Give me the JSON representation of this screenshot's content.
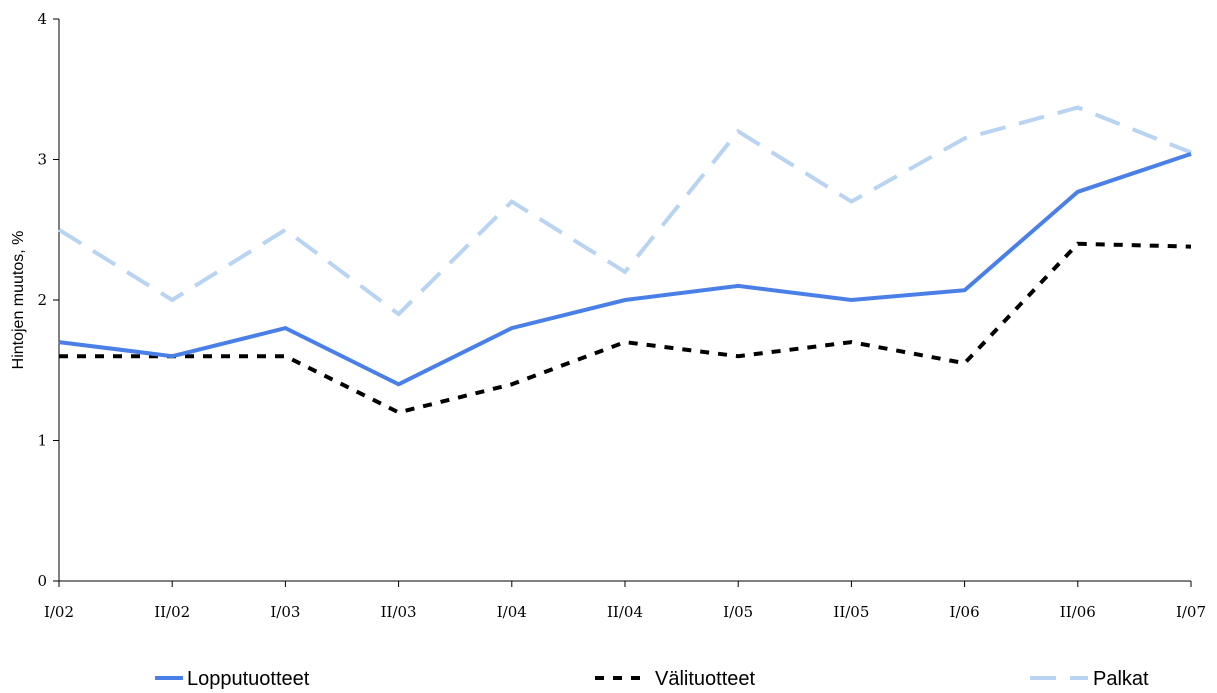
{
  "chart_data": {
    "type": "line",
    "title": "",
    "xlabel": "",
    "ylabel": "Hintojen muutos, %",
    "categories": [
      "I/02",
      "II/02",
      "I/03",
      "II/03",
      "I/04",
      "II/04",
      "I/05",
      "II/05",
      "I/06",
      "II/06",
      "I/07"
    ],
    "ylim": [
      0,
      4
    ],
    "yticks": [
      "0",
      "1",
      "2",
      "3",
      "4"
    ],
    "grid": false,
    "legend_position": "bottom",
    "series": [
      {
        "name": "Lopputuotteet",
        "color": "#4a7fe8",
        "style": "solid",
        "values": [
          1.7,
          1.6,
          1.8,
          1.4,
          1.8,
          2.0,
          2.1,
          2.0,
          2.07,
          2.77,
          3.04
        ]
      },
      {
        "name": "Välituotteet",
        "color": "#000000",
        "style": "dotted",
        "values": [
          1.6,
          1.6,
          1.6,
          1.2,
          1.4,
          1.7,
          1.6,
          1.7,
          1.55,
          2.4,
          2.38
        ]
      },
      {
        "name": "Palkat",
        "color": "#b8d4f2",
        "style": "dashed",
        "values": [
          2.5,
          2.0,
          2.5,
          1.9,
          2.7,
          2.2,
          3.2,
          2.7,
          3.15,
          3.37,
          3.05
        ]
      }
    ]
  }
}
